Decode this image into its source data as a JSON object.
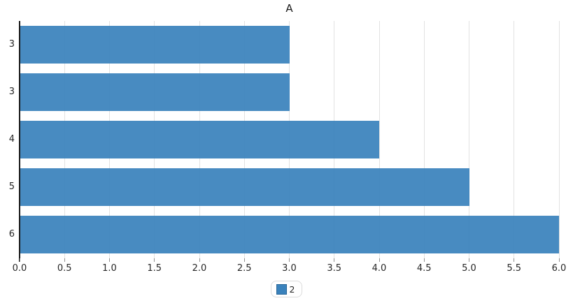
{
  "chart_data": {
    "type": "bar",
    "orientation": "horizontal",
    "title": "A",
    "categories": [
      "3",
      "3",
      "4",
      "5",
      "6"
    ],
    "series": [
      {
        "name": "2",
        "values": [
          3,
          3,
          4,
          5,
          6
        ]
      }
    ],
    "xlabel": "",
    "ylabel": "",
    "xlim": [
      0,
      6
    ],
    "xticks": [
      0,
      0.5,
      1,
      1.5,
      2,
      2.5,
      3,
      3.5,
      4,
      4.5,
      5,
      5.5,
      6
    ],
    "xtick_labels": [
      "0.0",
      "0.5",
      "1.0",
      "1.5",
      "2.0",
      "2.5",
      "3.0",
      "3.5",
      "4.0",
      "4.5",
      "5.0",
      "5.5",
      "6.0"
    ],
    "grid": true,
    "legend_position": "bottom-center"
  },
  "colors": {
    "bar": "#3a82bc",
    "bar_alpha": "rgba(58, 130, 188, 0.93)",
    "grid": "#e2e2e2",
    "spine": "#1a1a1a",
    "tick": "#8f8f8f",
    "text": "#262626",
    "legend_border": "#dcdcdc",
    "legend_swatch_border": "#2a6898"
  }
}
